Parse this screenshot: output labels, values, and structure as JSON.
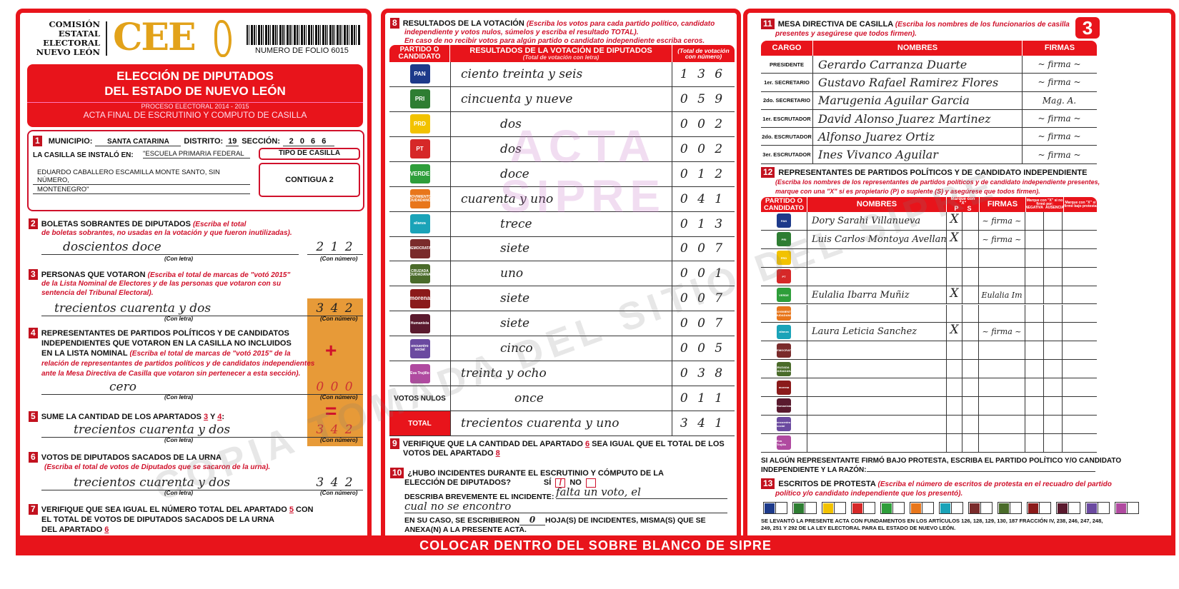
{
  "header": {
    "org_lines": [
      "COMISIÓN",
      "ESTATAL",
      "ELECTORAL",
      "NUEVO LEÓN"
    ],
    "logo": "CEE",
    "folio": "NUMERO DE FOLIO 6015"
  },
  "banner": {
    "title1": "ELECCIÓN DE DIPUTADOS",
    "title2": "DEL ESTADO DE NUEVO LEÓN",
    "process": "PROCESO ELECTORAL  2014 - 2015",
    "subtitle": "ACTA FINAL DE ESCRUTINIO Y COMPUTO DE CASILLA"
  },
  "s1": {
    "n": "1",
    "municipio_label": "MUNICIPIO:",
    "municipio": "SANTA CATARINA",
    "distrito_label": "DISTRITO:",
    "distrito": "19",
    "seccion_label": "SECCIÓN:",
    "seccion": "2 0 6 6",
    "lugar_label": "LA CASILLA SE INSTALÓ EN:",
    "lugar1": "\"ESCUELA PRIMARIA FEDERAL",
    "lugar2": "EDUARDO CABALLERO ESCAMILLA MONTE SANTO, SIN NÚMERO,",
    "lugar3": "MONTENEGRO\"",
    "tipo_label": "TIPO DE CASILLA",
    "tipo": "CONTIGUA 2"
  },
  "captions": {
    "letra": "(Con letra)",
    "numero": "(Con número)"
  },
  "s2": {
    "n": "2",
    "title": "BOLETAS SOBRANTES DE DIPUTADOS",
    "ins1": "(Escriba el total",
    "ins2": "de boletas sobrantes, no usadas en la votación y que fueron inutilizadas).",
    "letra": "doscientos doce",
    "numero": "2 1 2"
  },
  "s3": {
    "n": "3",
    "title": "PERSONAS QUE VOTARON",
    "ins1": "(Escriba el total de marcas de \"votó 2015\"",
    "ins2": "de la Lista Nominal de Electores y de las personas que votaron con su",
    "ins3": "sentencia del Tribunal Electoral).",
    "letra": "trecientos cuarenta y dos",
    "numero": "3 4 2"
  },
  "s4": {
    "n": "4",
    "t1": "REPRESENTANTES DE PARTIDOS POLÍTICOS Y DE CANDIDATOS",
    "t2": "INDEPENDIENTES QUE VOTARON EN LA CASILLA NO INCLUIDOS",
    "t3": "EN LA LISTA NOMINAL",
    "ins1": "(Escriba el total de marcas de \"votó 2015\" de la",
    "ins2": "relación de representantes de partidos políticos y de candidatos independientes",
    "ins3": "ante la Mesa Directiva de Casilla que votaron sin pertenecer a esta sección).",
    "letra": "cero",
    "numero": "0 0 0",
    "plus": "+"
  },
  "s5": {
    "n": "5",
    "title": "SUME LA CANTIDAD DE LOS APARTADOS",
    "a": "3",
    "y": "Y",
    "b": "4",
    "colon": ":",
    "letra": "trecientos cuarenta y dos",
    "numero": "3 4 2",
    "equals": "="
  },
  "s6": {
    "n": "6",
    "title": "VOTOS DE DIPUTADOS SACADOS DE LA URNA",
    "ins": "(Escriba el total de votos de Diputados que se sacaron de la urna).",
    "letra": "trecientos cuarenta y dos",
    "numero": "3 4 2"
  },
  "s7": {
    "n": "7",
    "t1": "VERIFIQUE QUE SEA IGUAL EL NÚMERO TOTAL DEL APARTADO",
    "a": "5",
    "t1b": "CON",
    "t2": "EL TOTAL DE VOTOS DE DIPUTADOS SACADOS DE LA URNA",
    "t3": "DEL APARTADO",
    "b": "6"
  },
  "s8": {
    "n": "8",
    "title": "RESULTADOS DE LA VOTACIÓN",
    "ins1": "(Escriba los votos para cada partido político, candidato",
    "ins2": "independiente y votos nulos, súmelos y escriba el resultado TOTAL).",
    "ins3": "En caso de no recibir votos para algún partido o candidato independiente escriba ceros.",
    "col1": "PARTIDO O CANDIDATO",
    "col2": "RESULTADOS DE LA VOTACIÓN DE DIPUTADOS",
    "col2sub": "(Total de votación con letra)",
    "col3": "(Total de votación con número)",
    "rows": [
      {
        "party": "PAN",
        "color": "#1d3a8a",
        "letra": "ciento treinta y seis",
        "numero": "1 3 6"
      },
      {
        "party": "PRI",
        "color": "#2e7d32",
        "letra": "cincuenta y nueve",
        "numero": "0 5 9"
      },
      {
        "party": "PRD",
        "color": "#f2c200",
        "letra": "dos",
        "numero": "0 0 2"
      },
      {
        "party": "PT",
        "color": "#d62828",
        "letra": "dos",
        "numero": "0 0 2"
      },
      {
        "party": "VERDE",
        "color": "#2e9e3a",
        "letra": "doce",
        "numero": "0 1 2"
      },
      {
        "party": "MOVIMIENTO CIUDADANO",
        "color": "#e8761b",
        "letra": "cuarenta y uno",
        "numero": "0 4 1"
      },
      {
        "party": "alianza",
        "color": "#1aa3b8",
        "letra": "trece",
        "numero": "0 1 3"
      },
      {
        "party": "DEMOCRATA",
        "color": "#7a2b2b",
        "letra": "siete",
        "numero": "0 0 7"
      },
      {
        "party": "CRUZADA CIUDADANA",
        "color": "#4a6b2a",
        "letra": "uno",
        "numero": "0 0 1"
      },
      {
        "party": "morena",
        "color": "#8b1a1a",
        "letra": "siete",
        "numero": "0 0 7"
      },
      {
        "party": "Humanista",
        "color": "#5a1a2e",
        "letra": "siete",
        "numero": "0 0 7"
      },
      {
        "party": "encuentro social",
        "color": "#6b4aa0",
        "letra": "cinco",
        "numero": "0 0 5"
      },
      {
        "party": "Eva Trujillo",
        "color": "#b04aa0",
        "letra": "treinta y ocho",
        "numero": "0 3 8"
      }
    ],
    "nulos": {
      "label": "VOTOS NULOS",
      "letra": "once",
      "numero": "0 1 1"
    },
    "total": {
      "label": "TOTAL",
      "letra": "trecientos cuarenta y uno",
      "numero": "3 4 1"
    }
  },
  "s9": {
    "n": "9",
    "t1": "VERIFIQUE QUE LA CANTIDAD DEL APARTADO",
    "a": "6",
    "t1b": "SEA IGUAL QUE EL TOTAL DE LOS",
    "t2": "VOTOS DEL APARTADO",
    "b": "8"
  },
  "s10": {
    "n": "10",
    "t1": "¿HUBO INCIDENTES DURANTE EL ESCRUTINIO Y CÓMPUTO DE LA",
    "t2": "ELECCIÓN DE DIPUTADOS?",
    "si": "SÍ",
    "no": "NO",
    "si_checked": true,
    "describe": "DESCRIBA BREVEMENTE EL INCIDENTE:",
    "incidente1": "falta un voto, el",
    "incidente2": "cual no se encontro",
    "hojas1": "EN SU CASO, SE ESCRIBIERON",
    "hojas": "0",
    "hojas2": "HOJA(S) DE INCIDENTES, MISMA(S) QUE SE",
    "hojas3": "ANEXA(N) A LA PRESENTE ACTA."
  },
  "footer": "COLOCAR DENTRO DEL SOBRE BLANCO DE SIPRE",
  "watermark": {
    "main": "COPIA TOMADA DEL SITIO DEL SIPRE",
    "stamp1": "ACTA",
    "stamp2": "SIPRE"
  },
  "page_number": "3",
  "s11": {
    "n": "11",
    "title": "MESA DIRECTIVA DE CASILLA",
    "ins1": "(Escriba los nombres de los funcionarios de casilla",
    "ins2": "presentes y asegúrese que todos firmen).",
    "col1": "CARGO",
    "col2": "NOMBRES",
    "col3": "FIRMAS",
    "rows": [
      {
        "cargo": "PRESIDENTE",
        "nombre": "Gerardo Carranza Duarte",
        "firma": "~ firma ~"
      },
      {
        "cargo": "1er. SECRETARIO",
        "nombre": "Gustavo Rafael Ramirez Flores",
        "firma": "~ firma ~"
      },
      {
        "cargo": "2do. SECRETARIO",
        "nombre": "Marugenia Aguilar Garcia",
        "firma": "Mag. A."
      },
      {
        "cargo": "1er. ESCRUTADOR",
        "nombre": "David Alonso Juarez Martinez",
        "firma": "~ firma ~"
      },
      {
        "cargo": "2do. ESCRUTADOR",
        "nombre": "Alfonso Juarez Ortiz",
        "firma": "~ firma ~"
      },
      {
        "cargo": "3er. ESCRUTADOR",
        "nombre": "Ines Vivanco Aguilar",
        "firma": "~ firma ~"
      }
    ]
  },
  "s12": {
    "n": "12",
    "title": "REPRESENTANTES DE PARTIDOS POLÍTICOS Y DE CANDIDATO INDEPENDIENTE",
    "ins1": "(Escriba los nombres de los representantes de partidos políticos y de candidato independiente presentes,",
    "ins2": "marque con una \"X\" si es propietario (P) o suplente (S) y asegúrese que todos firmen).",
    "col1": "PARTIDO O CANDIDATO",
    "col2": "NOMBRES",
    "col_mark": "Marque con \"X\"",
    "p": "P",
    "s": "S",
    "col3": "FIRMAS",
    "col_nofirmo": "Marque con \"X\" si no firmó por:",
    "negativa": "NEGATIVA",
    "ausencia": "AUSENCIA",
    "col_protesta": "Marque con \"X\" si firmó bajo protesta",
    "rows": [
      {
        "party": "PAN",
        "nombre": "Dory Sarahi Villanueva",
        "p": "X",
        "s": "",
        "firma": "~ firma ~"
      },
      {
        "party": "PRI",
        "nombre": "Luis Carlos Montoya Avellaneda",
        "p": "X",
        "s": "",
        "firma": "~ firma ~"
      },
      {
        "party": "PRD",
        "nombre": "",
        "p": "",
        "s": "",
        "firma": ""
      },
      {
        "party": "PT",
        "nombre": "",
        "p": "",
        "s": "",
        "firma": ""
      },
      {
        "party": "VERDE",
        "nombre": "Eulalia Ibarra Muñiz",
        "p": "X",
        "s": "",
        "firma": "Eulalia Im"
      },
      {
        "party": "MOVIMIENTO CIUDADANO",
        "nombre": "",
        "p": "",
        "s": "",
        "firma": ""
      },
      {
        "party": "alianza",
        "nombre": "Laura Leticia Sanchez",
        "p": "X",
        "s": "",
        "firma": "~ firma ~"
      },
      {
        "party": "DEMOCRATA",
        "nombre": "",
        "p": "",
        "s": "",
        "firma": ""
      },
      {
        "party": "CRUZADA CIUDADANA",
        "nombre": "",
        "p": "",
        "s": "",
        "firma": ""
      },
      {
        "party": "morena",
        "nombre": "",
        "p": "",
        "s": "",
        "firma": ""
      },
      {
        "party": "Humanista",
        "nombre": "",
        "p": "",
        "s": "",
        "firma": ""
      },
      {
        "party": "encuentro social",
        "nombre": "",
        "p": "",
        "s": "",
        "firma": ""
      },
      {
        "party": "Eva Trujillo",
        "nombre": "",
        "p": "",
        "s": "",
        "firma": ""
      }
    ],
    "protesta1": "SI ALGÚN REPRESENTANTE FIRMÓ BAJO PROTESTA, ESCRIBA EL PARTIDO POLÍTICO Y/O CANDIDATO",
    "protesta2": "INDEPENDIENTE Y LA RAZÓN:"
  },
  "s13": {
    "n": "13",
    "title": "ESCRITOS DE PROTESTA",
    "ins1": "(Escriba el número de escritos de protesta en el recuadro del partido",
    "ins2": "político y/o candidato independiente que los presentó).",
    "legal": "SE LEVANTÓ LA PRESENTE ACTA CON FUNDAMENTOS EN LOS ARTÍCULOS 126, 128, 129, 130, 187 FRACCIÓN IV, 238, 246, 247, 248, 249, 251 Y 292 DE LA LEY ELECTORAL PARA EL ESTADO DE NUEVO LEÓN."
  }
}
